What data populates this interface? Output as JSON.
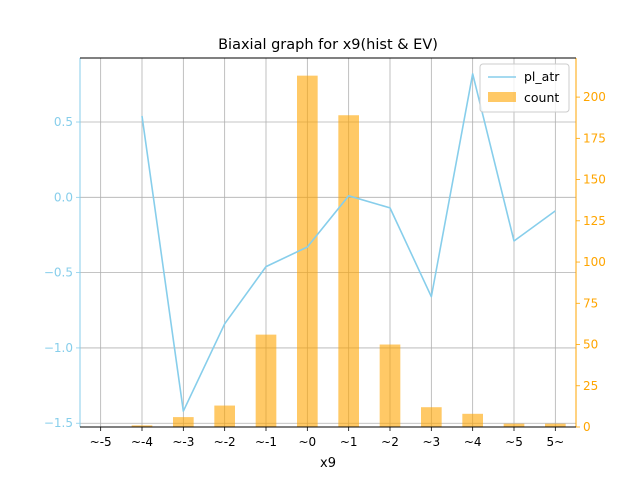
{
  "chart_data": {
    "type": "bar+line",
    "title": "Biaxial graph for x9(hist & EV)",
    "xlabel": "x9",
    "categories": [
      "~-5",
      "~-4",
      "~-3",
      "~-2",
      "~-1",
      "~0",
      "~1",
      "~2",
      "~3",
      "~4",
      "~5",
      "5~"
    ],
    "series": [
      {
        "name": "pl_atr",
        "type": "line",
        "axis": "left",
        "color": "#87CEEB",
        "values": [
          null,
          0.54,
          -1.42,
          -0.84,
          -0.46,
          -0.33,
          0.01,
          -0.07,
          -0.66,
          0.82,
          -0.29,
          -0.09
        ]
      },
      {
        "name": "count",
        "type": "bar",
        "axis": "right",
        "color": "#FFA500",
        "opacity": 0.6,
        "values": [
          0,
          1,
          6,
          13,
          56,
          213,
          189,
          50,
          12,
          8,
          2,
          2
        ]
      }
    ],
    "left_axis": {
      "ylim": [
        -1.525,
        0.925
      ],
      "ticks": [
        -1.5,
        -1.0,
        -0.5,
        0.0,
        0.5
      ],
      "tick_labels": [
        "−1.5",
        "−1.0",
        "−0.5",
        "0.0",
        "0.5"
      ],
      "color": "#87CEEB"
    },
    "right_axis": {
      "ylim": [
        0,
        223.7
      ],
      "ticks": [
        0,
        25,
        50,
        75,
        100,
        125,
        150,
        175,
        200
      ],
      "tick_labels": [
        "0",
        "25",
        "50",
        "75",
        "100",
        "125",
        "150",
        "175",
        "200"
      ],
      "color": "#FFA500"
    },
    "grid": true,
    "legend": "top-right",
    "legend_entries": [
      "pl_atr",
      "count"
    ]
  }
}
